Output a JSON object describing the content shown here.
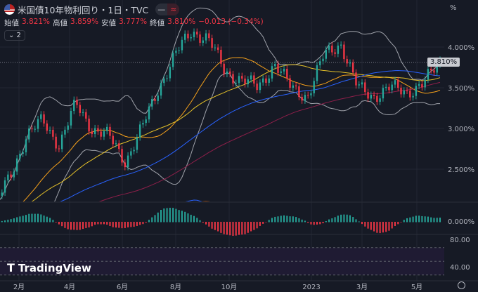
{
  "header": {
    "title": "米国債10年物利回り・1日・TVC",
    "pill_left": "—",
    "pill_right": "≈",
    "collapse_label": "⌄ 2"
  },
  "ohlc": {
    "open_label": "始値",
    "open": "3.821%",
    "high_label": "高値",
    "high": "3.859%",
    "low_label": "安値",
    "low": "3.777%",
    "close_label": "終値",
    "close": "3.810%",
    "change": "−0.013 (−0.34%)"
  },
  "logo": "TradingView",
  "colors": {
    "up": "#26a69a",
    "down": "#f23645",
    "ma_fast": "#f7a21b",
    "ma_mid": "#e6c229",
    "ma_slow": "#2962ff",
    "ma_long": "#8e1f4a",
    "bb": "#a0a3ab",
    "rsi": "#7e57c2"
  },
  "chart_data": {
    "type": "candlestick",
    "title": "米国債10年物利回り・1日・TVC",
    "ylabel": "%",
    "ylim": [
      2.0,
      4.45
    ],
    "yticks": [
      "4.000%",
      "3.500%",
      "3.000%",
      "2.500%"
    ],
    "last_price": "3.810%",
    "xticks": [
      "2月",
      "4月",
      "6月",
      "8月",
      "10月",
      "2023",
      "3月",
      "5月"
    ],
    "path_keypoints": [
      2.0,
      2.4,
      2.9,
      3.1,
      2.8,
      3.3,
      3.0,
      2.9,
      2.6,
      3.0,
      3.5,
      3.9,
      4.2,
      4.1,
      3.7,
      3.6,
      3.5,
      3.8,
      3.5,
      3.4,
      3.9,
      4.05,
      3.5,
      3.4,
      3.5,
      3.45,
      3.55,
      3.81
    ],
    "macd": {
      "zero_label": "0.000%"
    },
    "rsi": {
      "ticks": [
        "80.00",
        "40.00"
      ]
    }
  }
}
